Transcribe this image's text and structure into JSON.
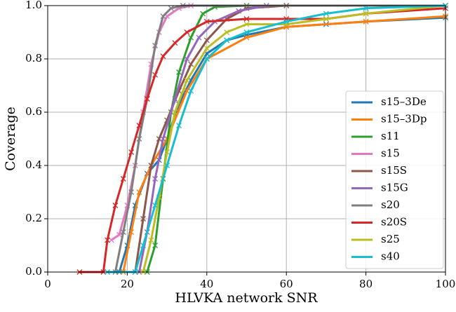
{
  "chart_data": {
    "type": "line",
    "xlabel": "HLVKA network SNR",
    "ylabel": "Coverage",
    "xlim": [
      0,
      100
    ],
    "ylim": [
      0,
      1.0
    ],
    "xticks": [
      0,
      20,
      40,
      60,
      80,
      100
    ],
    "yticks": [
      {
        "value": 0,
        "label": "0.0"
      },
      0.2,
      0.4,
      0.6,
      0.8,
      {
        "value": 1,
        "label": "1.0"
      }
    ],
    "grid": true,
    "legend": "lower right",
    "series": [
      {
        "name": "s15–3De",
        "color": "#1f77b4",
        "x": [
          18,
          20,
          22,
          25,
          28,
          30,
          33,
          36,
          40,
          45,
          50,
          60,
          70,
          80,
          100
        ],
        "values": [
          0,
          0.1,
          0.25,
          0.37,
          0.42,
          0.5,
          0.63,
          0.72,
          0.82,
          0.87,
          0.89,
          0.92,
          0.93,
          0.94,
          0.955
        ]
      },
      {
        "name": "s15–3Dp",
        "color": "#ff7f0e",
        "x": [
          19,
          21,
          23,
          26,
          30,
          35,
          40,
          50,
          60,
          80,
          100
        ],
        "values": [
          0,
          0.15,
          0.3,
          0.4,
          0.5,
          0.68,
          0.8,
          0.88,
          0.92,
          0.94,
          0.96
        ]
      },
      {
        "name": "s11",
        "color": "#2ca02c",
        "x": [
          25,
          27,
          29,
          31,
          33,
          36,
          39,
          42,
          50,
          100
        ],
        "values": [
          0,
          0.1,
          0.35,
          0.6,
          0.75,
          0.88,
          0.97,
          0.995,
          1,
          1
        ]
      },
      {
        "name": "s15",
        "color": "#e377c2",
        "x": [
          16,
          18,
          20,
          22,
          24,
          26,
          28,
          30,
          33,
          36,
          100
        ],
        "values": [
          0.12,
          0.14,
          0.25,
          0.4,
          0.6,
          0.78,
          0.9,
          0.96,
          0.99,
          1,
          1
        ]
      },
      {
        "name": "s15S",
        "color": "#8c564b",
        "x": [
          22,
          24,
          26,
          28,
          30,
          33,
          36,
          40,
          45,
          50,
          60,
          100
        ],
        "values": [
          0,
          0.2,
          0.4,
          0.5,
          0.57,
          0.68,
          0.78,
          0.87,
          0.95,
          0.99,
          1,
          1
        ]
      },
      {
        "name": "s15G",
        "color": "#9467bd",
        "x": [
          23,
          25,
          27,
          29,
          32,
          35,
          38,
          42,
          48,
          55,
          100
        ],
        "values": [
          0,
          0.15,
          0.35,
          0.5,
          0.65,
          0.8,
          0.88,
          0.94,
          0.98,
          1,
          1
        ]
      },
      {
        "name": "s20",
        "color": "#7f7f7f",
        "x": [
          17,
          19,
          21,
          23,
          25,
          27,
          29,
          31,
          34,
          100
        ],
        "values": [
          0,
          0.15,
          0.3,
          0.5,
          0.65,
          0.85,
          0.96,
          0.99,
          1,
          1
        ]
      },
      {
        "name": "s20S",
        "color": "#d62728",
        "x": [
          8,
          14,
          15,
          17,
          19,
          21,
          23,
          25,
          27,
          29,
          32,
          35,
          40,
          50,
          60,
          70,
          80,
          100
        ],
        "values": [
          0,
          0,
          0.12,
          0.25,
          0.35,
          0.45,
          0.55,
          0.65,
          0.74,
          0.81,
          0.86,
          0.9,
          0.94,
          0.95,
          0.95,
          0.95,
          0.97,
          0.99
        ]
      },
      {
        "name": "s25",
        "color": "#bcbd22",
        "x": [
          24,
          26,
          28,
          30,
          32,
          35,
          40,
          45,
          50,
          60,
          70,
          80,
          100
        ],
        "values": [
          0,
          0.12,
          0.28,
          0.45,
          0.6,
          0.72,
          0.84,
          0.9,
          0.93,
          0.93,
          0.95,
          0.97,
          1
        ]
      },
      {
        "name": "s40",
        "color": "#17becf",
        "x": [
          15,
          22,
          24,
          27,
          30,
          33,
          36,
          40,
          45,
          50,
          60,
          70,
          80,
          100
        ],
        "values": [
          0,
          0,
          0.1,
          0.25,
          0.4,
          0.55,
          0.68,
          0.8,
          0.87,
          0.9,
          0.94,
          0.97,
          0.99,
          1
        ]
      }
    ]
  }
}
